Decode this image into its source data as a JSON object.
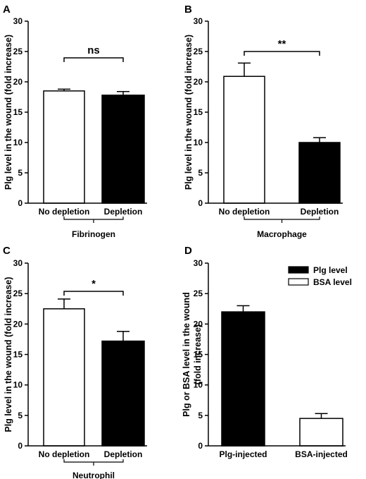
{
  "chart_data": [
    {
      "type": "bar",
      "panel": "A",
      "ylabel": "Plg level in the wound (fold increase)",
      "ylim": [
        0,
        30
      ],
      "yticks": [
        "0",
        "5",
        "10",
        "15",
        "20",
        "25",
        "30"
      ],
      "categories": [
        "No depletion",
        "Depletion"
      ],
      "values": [
        18.5,
        17.8
      ],
      "errors": [
        0.3,
        0.6
      ],
      "group_label": "Fibrinogen",
      "significance": "ns"
    },
    {
      "type": "bar",
      "panel": "B",
      "ylabel": "Plg level in the wound (fold increase)",
      "ylim": [
        0,
        30
      ],
      "yticks": [
        "0",
        "5",
        "10",
        "15",
        "20",
        "25",
        "30"
      ],
      "categories": [
        "No depletion",
        "Depletion"
      ],
      "values": [
        20.9,
        10.0
      ],
      "errors": [
        2.2,
        0.8
      ],
      "group_label": "Macrophage",
      "significance": "**"
    },
    {
      "type": "bar",
      "panel": "C",
      "ylabel": "Plg level in the wound (fold increase)",
      "ylim": [
        0,
        30
      ],
      "yticks": [
        "0",
        "5",
        "10",
        "15",
        "20",
        "25",
        "30"
      ],
      "categories": [
        "No depletion",
        "Depletion"
      ],
      "values": [
        22.5,
        17.2
      ],
      "errors": [
        1.6,
        1.6
      ],
      "group_label": "Neutrophil",
      "significance": "*"
    },
    {
      "type": "bar",
      "panel": "D",
      "ylabel": "Plg or BSA level in the wound (fold increase)",
      "ylim": [
        0,
        30
      ],
      "yticks": [
        "0",
        "5",
        "10",
        "15",
        "20",
        "25",
        "30"
      ],
      "categories": [
        "Plg-injected",
        "BSA-injected"
      ],
      "values": [
        22.0,
        4.5
      ],
      "errors": [
        1.0,
        0.8
      ],
      "group_label": "",
      "significance": "",
      "legend": [
        "Plg level",
        "BSA level"
      ],
      "legend_position": "top-right"
    }
  ],
  "colors": {
    "filled": "#000000",
    "open": "#ffffff",
    "stroke": "#000000"
  }
}
